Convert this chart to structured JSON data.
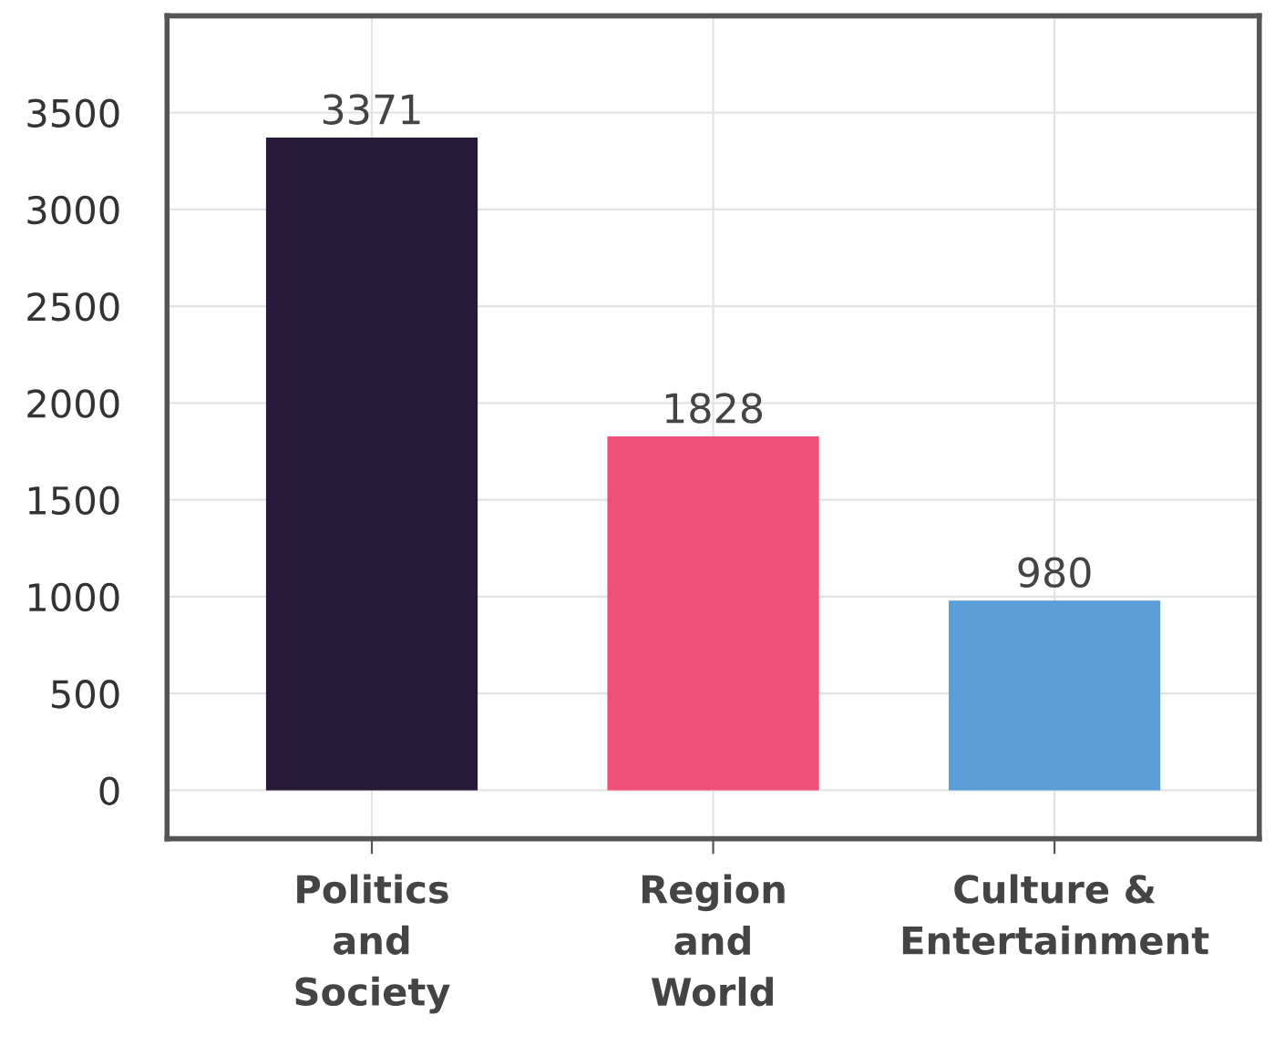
{
  "chart_data": {
    "type": "bar",
    "categories": [
      "Politics\nand\nSociety",
      "Region\nand\nWorld",
      "Culture &\nEntertainment"
    ],
    "values": [
      3371,
      1828,
      980
    ],
    "colors": [
      "#27193a",
      "#f05078",
      "#5b9dd6"
    ],
    "ylim": [
      -250,
      4000
    ],
    "yticks": [
      0,
      500,
      1000,
      1500,
      2000,
      2500,
      3000,
      3500
    ],
    "grid": true,
    "data_labels": true
  }
}
